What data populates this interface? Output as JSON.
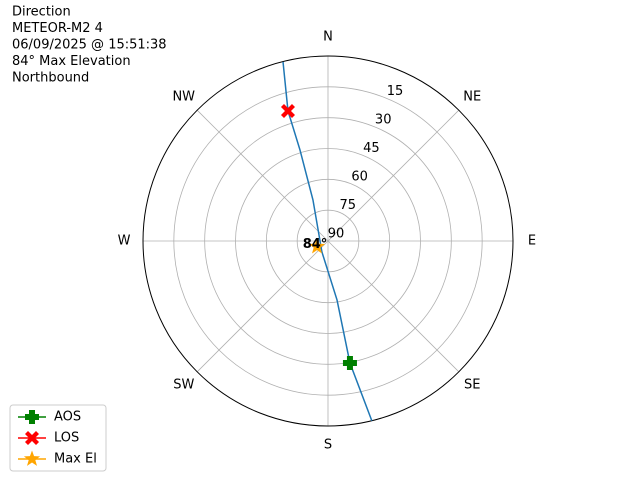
{
  "chart_data": {
    "type": "polar",
    "title": [
      "Direction",
      "METEOR-M2 4",
      "06/09/2025 @ 15:51:38",
      "84° Max Elevation",
      "Northbound"
    ],
    "thetaticks": [
      {
        "value": 0,
        "label": "N"
      },
      {
        "value": 45,
        "label": "NE"
      },
      {
        "value": 90,
        "label": "E"
      },
      {
        "value": 135,
        "label": "SE"
      },
      {
        "value": 180,
        "label": "S"
      },
      {
        "value": 225,
        "label": "SW"
      },
      {
        "value": 270,
        "label": "W"
      },
      {
        "value": 315,
        "label": "NW"
      }
    ],
    "rlim": [
      90,
      0
    ],
    "rticks": [
      90,
      75,
      60,
      45,
      30,
      15
    ],
    "grid": true,
    "legend": "lower left",
    "series": [
      {
        "color": "#1f77b4",
        "marker": "none",
        "theta": [
          166.3,
          169.8,
          171.3,
          209,
          339.9,
          342.9,
          342.9,
          345.9
        ],
        "values": [
          0,
          29.7,
          61,
          83.9,
          68.7,
          43.7,
          23.8,
          0.2
        ]
      },
      {
        "name": "AOS",
        "color": "#008000",
        "marker": "plus",
        "theta": [
          169.8
        ],
        "values": [
          29.7
        ]
      },
      {
        "name": "LOS",
        "color": "#ff0000",
        "marker": "x",
        "theta": [
          342.9
        ],
        "values": [
          23.8
        ]
      },
      {
        "name": "Max El",
        "color": "#ffa500",
        "marker": "star",
        "theta": [
          243
        ],
        "values": [
          84
        ],
        "value_labels": [
          "84°"
        ]
      }
    ]
  }
}
